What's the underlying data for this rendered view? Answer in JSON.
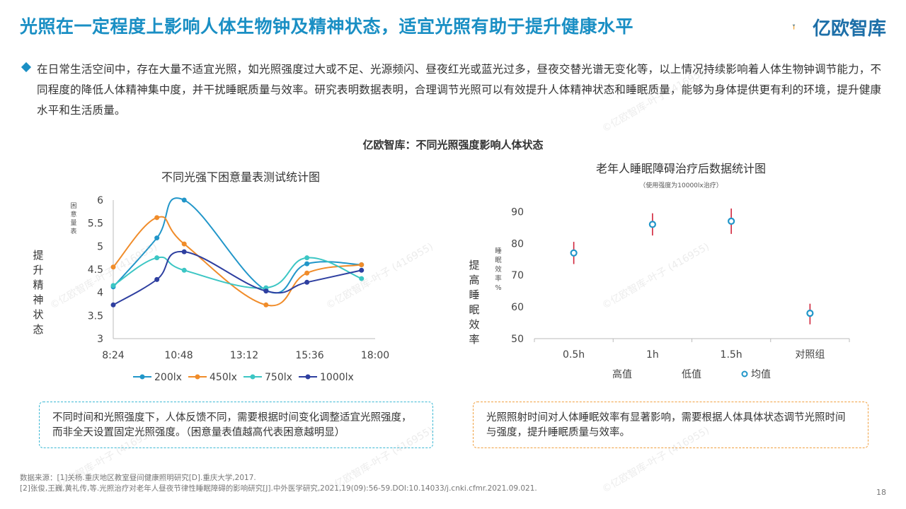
{
  "header": {
    "title": "光照在一定程度上影响人体生物钟及精神状态，适宜光照有助于提升健康水平",
    "logo_text": "亿欧智库"
  },
  "bullet": "在日常生活空间中，存在大量不适宜光照，如光照强度过大或不足、光源频闪、昼夜红光或蓝光过多，昼夜交替光谱无变化等，以上情况持续影响着人体生物钟调节能力，不同程度的降低人体精神集中度，并干扰睡眠质量与效率。研究表明数据表明，合理调节光照可以有效提升人体精神状态和睡眠质量，能够为身体提供更有利的环境，提升健康水平和生活质量。",
  "section_title": "亿欧智库：不同光照强度影响人体状态",
  "notes": {
    "left": "不同时间和光照强度下，人体反馈不同，需要根据时间变化调整适宜光照强度，而非全天设置固定光照强度。（困意量表值越高代表困意越明显）",
    "right": "光照照射时间对人体睡眠效率有显著影响，需要根据人体具体状态调节光照时间与强度，提升睡眠质量与效率。"
  },
  "footnotes": [
    "数据来源：[1]关杨.重庆地区教室昼间健康照明研究[D].重庆大学,2017.",
    "[2]张俊,王巍,黄礼传,等.光照治疗对老年人昼夜节律性睡眠障碍的影响研究[J].中外医学研究,2021,19(09):56-59.DOI:10.14033/j.cnki.cfmr.2021.09.021."
  ],
  "page_number": "18",
  "watermark": "©亿欧智库-叶子 (416955)",
  "colors": {
    "title": "#1a8fc4",
    "s200": "#2196c9",
    "s450": "#f08c2a",
    "s750": "#3cc6c4",
    "s1000": "#2e3fa0",
    "errorbar": "#d0243a"
  },
  "chart_data": [
    {
      "type": "line",
      "title": "不同光强下困意量表测试统计图",
      "ylabel": "困意量表",
      "side_label": "提升精神状态",
      "x": [
        "8:24",
        "10:48",
        "13:12",
        "15:36",
        "18:00"
      ],
      "x_numeric_hours": [
        8.4,
        9.0,
        10.0,
        11.0,
        12.0,
        13.0,
        14.0,
        15.0,
        16.0,
        16.5,
        17.0,
        17.5
      ],
      "xticks": [
        "8:24",
        "10:48",
        "13:12",
        "15:36",
        "18:00"
      ],
      "ylim": [
        3,
        6
      ],
      "yticks": [
        "3",
        "3.5",
        "4",
        "4.5",
        "5",
        "5.5",
        "6"
      ],
      "series": [
        {
          "name": "200lx",
          "color_key": "s200",
          "points": [
            [
              8.4,
              4.12
            ],
            [
              10.0,
              5.18
            ],
            [
              11.0,
              6.0
            ],
            [
              14.0,
              4.05
            ],
            [
              15.5,
              4.62
            ],
            [
              17.5,
              4.6
            ]
          ]
        },
        {
          "name": "450lx",
          "color_key": "s450",
          "points": [
            [
              8.4,
              4.55
            ],
            [
              10.0,
              5.62
            ],
            [
              11.0,
              5.05
            ],
            [
              14.0,
              3.73
            ],
            [
              15.5,
              4.42
            ],
            [
              17.5,
              4.6
            ]
          ]
        },
        {
          "name": "750lx",
          "color_key": "s750",
          "points": [
            [
              8.4,
              4.15
            ],
            [
              10.0,
              4.75
            ],
            [
              11.0,
              4.48
            ],
            [
              14.0,
              4.1
            ],
            [
              15.5,
              4.75
            ],
            [
              17.5,
              4.3
            ]
          ]
        },
        {
          "name": "1000lx",
          "color_key": "s1000",
          "points": [
            [
              8.4,
              3.73
            ],
            [
              10.0,
              4.28
            ],
            [
              11.0,
              4.88
            ],
            [
              14.0,
              4.03
            ],
            [
              15.5,
              4.22
            ],
            [
              17.5,
              4.48
            ]
          ]
        }
      ],
      "legend": "bottom"
    },
    {
      "type": "scatter",
      "title": "老年人睡眠障碍治疗后数据统计图",
      "subtitle": "（使用强度为10000lx治疗）",
      "ylabel": "睡眠效率%",
      "side_label": "提高睡眠效率",
      "categories": [
        "0.5h",
        "1h",
        "1.5h",
        "对照组"
      ],
      "ylim": [
        50,
        95
      ],
      "yticks": [
        "50",
        "60",
        "70",
        "80",
        "90"
      ],
      "mean": [
        77,
        86,
        87,
        58
      ],
      "high": [
        80.5,
        89.5,
        91,
        61
      ],
      "low": [
        73.5,
        82.5,
        83,
        54.5
      ],
      "legend_items": [
        "高值",
        "低值",
        "均值"
      ],
      "legend": "bottom"
    }
  ]
}
